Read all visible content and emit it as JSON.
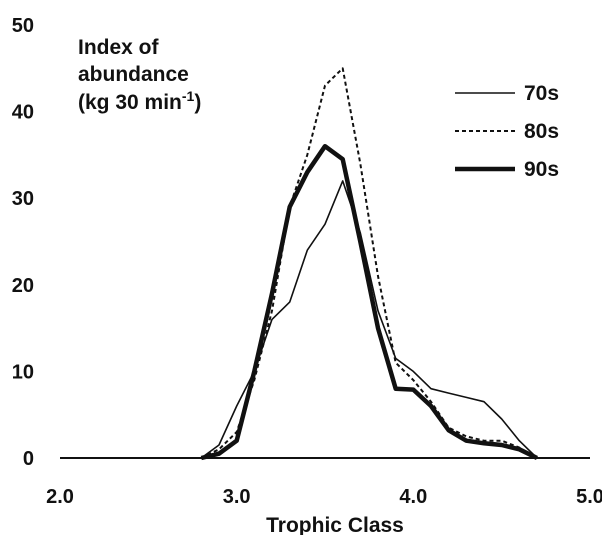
{
  "chart_data": {
    "type": "line",
    "xlabel": "Trophic Class",
    "ylabel_lines": [
      "Index of",
      "abundance",
      "(kg 30 min",
      "-1",
      ")"
    ],
    "xlim": [
      2.0,
      5.0
    ],
    "ylim": [
      0,
      50
    ],
    "x_ticks": [
      "2.0",
      "3.0",
      "4.0",
      "5.0"
    ],
    "x_tick_values": [
      2.0,
      3.0,
      4.0,
      5.0
    ],
    "y_ticks": [
      "0",
      "10",
      "20",
      "30",
      "40",
      "50"
    ],
    "y_tick_values": [
      0,
      10,
      20,
      30,
      40,
      50
    ],
    "grid": false,
    "legend_position": "top-right",
    "series": [
      {
        "name": "70s",
        "style": "thin-solid",
        "x": [
          2.8,
          2.9,
          3.0,
          3.1,
          3.2,
          3.3,
          3.4,
          3.5,
          3.6,
          3.7,
          3.8,
          3.9,
          4.0,
          4.1,
          4.2,
          4.3,
          4.4,
          4.5,
          4.6,
          4.7
        ],
        "y": [
          0,
          1.5,
          6,
          10,
          16,
          18,
          24,
          27,
          32,
          26,
          17,
          11.5,
          10,
          8,
          7.5,
          7,
          6.5,
          4.5,
          2,
          0
        ]
      },
      {
        "name": "80s",
        "style": "dotted",
        "x": [
          2.8,
          2.9,
          3.0,
          3.1,
          3.2,
          3.3,
          3.4,
          3.5,
          3.6,
          3.7,
          3.8,
          3.9,
          4.0,
          4.1,
          4.2,
          4.3,
          4.4,
          4.5,
          4.6,
          4.7
        ],
        "y": [
          0,
          1,
          3,
          9,
          17,
          29,
          35,
          43,
          45,
          34,
          21,
          11,
          9,
          6.5,
          3.5,
          2.5,
          2,
          2,
          1.2,
          0
        ]
      },
      {
        "name": "90s",
        "style": "thick-solid",
        "x": [
          2.8,
          2.9,
          3.0,
          3.1,
          3.2,
          3.3,
          3.4,
          3.5,
          3.6,
          3.7,
          3.8,
          3.9,
          4.0,
          4.1,
          4.2,
          4.3,
          4.4,
          4.5,
          4.6,
          4.7
        ],
        "y": [
          0,
          0.5,
          2,
          10,
          19,
          29,
          33,
          36,
          34.5,
          25,
          15,
          8,
          7.9,
          6,
          3.2,
          2,
          1.7,
          1.5,
          1,
          0
        ]
      }
    ]
  }
}
